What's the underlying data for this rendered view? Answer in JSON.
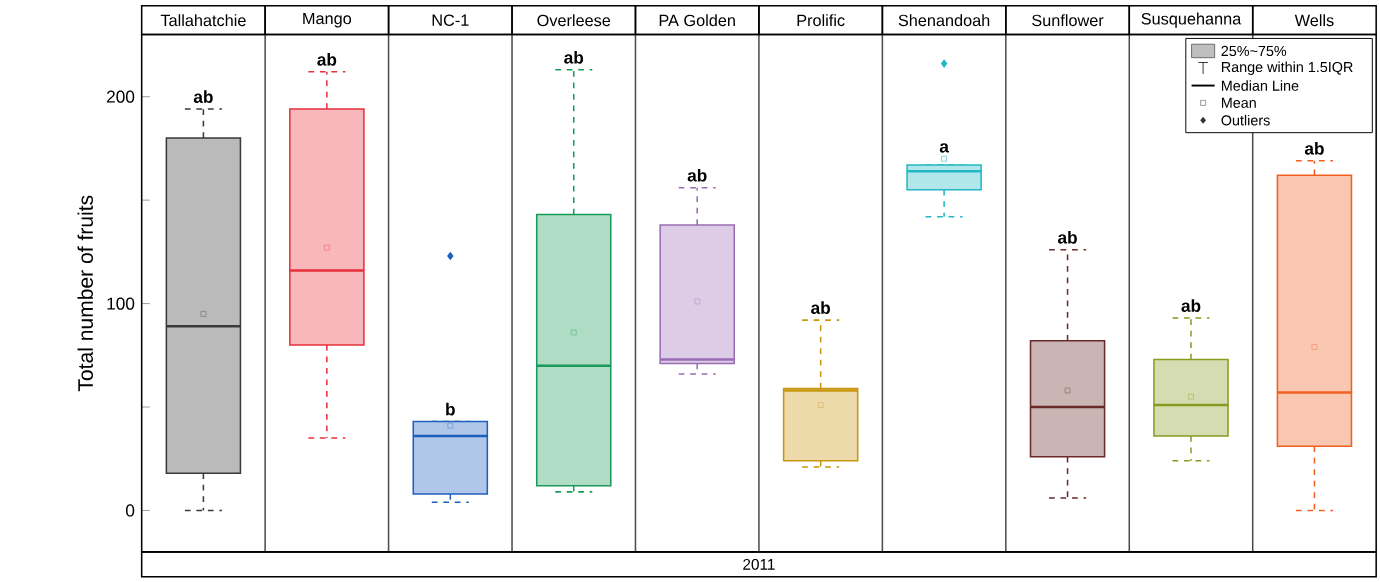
{
  "chart_data": {
    "type": "box",
    "ylabel": "Total number of fruits",
    "xlabel": "2011",
    "categories": [
      "Tallahatchie",
      "Mango",
      "NC-1",
      "Overleese",
      "PA Golden",
      "Prolific",
      "Shenandoah",
      "Sunflower",
      "Susquehanna",
      "Wells"
    ],
    "colors": [
      "#3a3a3a",
      "#e8303c",
      "#1f5fbf",
      "#1a9a5a",
      "#9a6cb4",
      "#c8960e",
      "#20b8c4",
      "#6a2a2a",
      "#8a9a20",
      "#f06020"
    ],
    "boxes": [
      {
        "low": 0,
        "q1": 18,
        "median": 89,
        "q3": 180,
        "high": 194,
        "mean": 95
      },
      {
        "low": 35,
        "q1": 80,
        "median": 116,
        "q3": 194,
        "high": 212,
        "mean": 127
      },
      {
        "low": 4,
        "q1": 8,
        "median": 36,
        "q3": 43,
        "high": 43,
        "mean": 41,
        "outliers": [
          123
        ]
      },
      {
        "low": 9,
        "q1": 12,
        "median": 70,
        "q3": 143,
        "high": 213,
        "mean": 86
      },
      {
        "low": 66,
        "q1": 71,
        "median": 73,
        "q3": 138,
        "high": 156,
        "mean": 101
      },
      {
        "low": 21,
        "q1": 24,
        "median": 58,
        "q3": 59,
        "high": 92,
        "mean": 51
      },
      {
        "low": 142,
        "q1": 155,
        "median": 164,
        "q3": 167,
        "high": 167,
        "mean": 170,
        "outliers": [
          216
        ]
      },
      {
        "low": 6,
        "q1": 26,
        "median": 50,
        "q3": 82,
        "high": 126,
        "mean": 58
      },
      {
        "low": 24,
        "q1": 36,
        "median": 51,
        "q3": 73,
        "high": 93,
        "mean": 55
      },
      {
        "low": 0,
        "q1": 31,
        "median": 57,
        "q3": 162,
        "high": 169,
        "mean": 79
      }
    ],
    "ylim": [
      -20,
      230
    ],
    "yticks": [
      0,
      100,
      200,
      {
        "value": 50,
        "label": null
      },
      {
        "value": 150,
        "label": null
      }
    ],
    "annotations": [
      "ab",
      "ab",
      "b",
      "ab",
      "ab",
      "ab",
      "a",
      "ab",
      "ab",
      "ab",
      "25%~75%",
      "Range within 1.5IQR",
      "Median Line",
      "Mean",
      "Outliers"
    ]
  }
}
